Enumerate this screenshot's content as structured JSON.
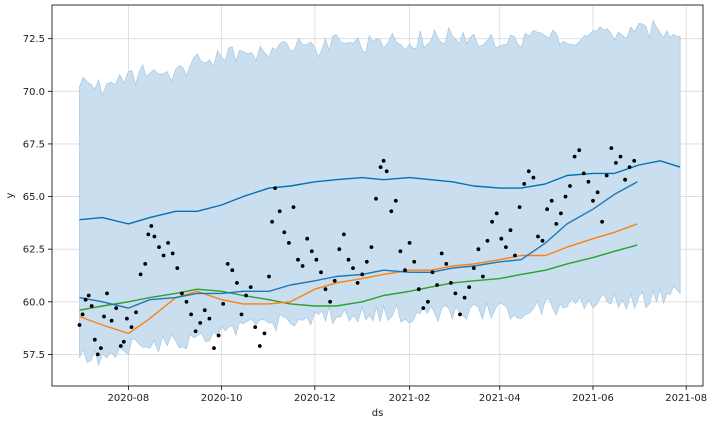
{
  "chart_data": {
    "type": "line",
    "title": "",
    "xlabel": "ds",
    "ylabel": "y",
    "xlim": [
      "2020-06-12",
      "2021-08-12"
    ],
    "ylim": [
      56.0,
      74.1
    ],
    "grid": true,
    "x_ticks": [
      "2020-08",
      "2020-10",
      "2020-12",
      "2021-02",
      "2021-04",
      "2021-06",
      "2021-08"
    ],
    "x_tick_dates": [
      "2020-08-01",
      "2020-10-01",
      "2020-12-01",
      "2021-02-01",
      "2021-04-01",
      "2021-06-01",
      "2021-08-01"
    ],
    "y_ticks": [
      57.5,
      60.0,
      62.5,
      65.0,
      67.5,
      70.0,
      72.5
    ],
    "colors": {
      "band_fill": "#c9dfef",
      "band_edge": "#a9cbe6",
      "forecast": "#0072B2",
      "series_2": "#1f77b4",
      "series_3": "#ff7f0e",
      "series_4": "#2ca02c",
      "points": "#000000",
      "grid": "#d9d9d9"
    },
    "forecast": {
      "x": [
        "2020-06-30",
        "2020-07-15",
        "2020-08-01",
        "2020-08-15",
        "2020-09-01",
        "2020-09-15",
        "2020-10-01",
        "2020-10-15",
        "2020-11-01",
        "2020-11-15",
        "2020-12-01",
        "2020-12-15",
        "2021-01-01",
        "2021-01-15",
        "2021-02-01",
        "2021-02-15",
        "2021-03-01",
        "2021-03-15",
        "2021-04-01",
        "2021-04-15",
        "2021-05-01",
        "2021-05-15",
        "2021-06-01",
        "2021-06-15",
        "2021-07-01",
        "2021-07-15",
        "2021-07-28"
      ],
      "yhat": [
        63.9,
        64.0,
        63.7,
        64.0,
        64.3,
        64.3,
        64.6,
        65.0,
        65.4,
        65.5,
        65.7,
        65.8,
        65.9,
        65.8,
        65.9,
        65.8,
        65.7,
        65.5,
        65.4,
        65.4,
        65.6,
        66.0,
        66.1,
        66.1,
        66.5,
        66.7,
        66.4
      ],
      "upper": [
        70.5,
        70.2,
        70.6,
        71.0,
        70.8,
        71.4,
        71.6,
        71.8,
        72.0,
        72.2,
        72.0,
        72.3,
        72.1,
        72.4,
        72.4,
        72.5,
        72.6,
        72.5,
        72.4,
        72.5,
        72.5,
        72.6,
        72.6,
        72.7,
        72.8,
        73.0,
        72.6
      ],
      "lower": [
        57.5,
        57.2,
        57.8,
        58.0,
        58.0,
        58.3,
        58.5,
        58.8,
        59.0,
        59.1,
        59.2,
        59.4,
        59.3,
        59.5,
        59.4,
        59.5,
        59.5,
        59.5,
        59.6,
        59.6,
        59.7,
        59.8,
        59.9,
        60.0,
        60.1,
        60.2,
        60.4
      ]
    },
    "series": [
      {
        "x": [
          "2020-06-30",
          "2020-07-15",
          "2020-08-01",
          "2020-08-15",
          "2020-09-01",
          "2020-09-15",
          "2020-10-01",
          "2020-10-15",
          "2020-11-01",
          "2020-11-15",
          "2020-12-01",
          "2020-12-15",
          "2021-01-01",
          "2021-01-15",
          "2021-02-01",
          "2021-02-15",
          "2021-03-01",
          "2021-03-15",
          "2021-04-01",
          "2021-04-15",
          "2021-05-01",
          "2021-05-15",
          "2021-06-01",
          "2021-06-15",
          "2021-06-30"
        ],
        "values": [
          60.2,
          60.0,
          59.7,
          60.1,
          60.2,
          60.4,
          60.4,
          60.5,
          60.5,
          60.8,
          61.0,
          61.2,
          61.3,
          61.5,
          61.4,
          61.4,
          61.6,
          61.7,
          61.9,
          62.0,
          62.8,
          63.7,
          64.4,
          65.1,
          65.7
        ]
      },
      {
        "x": [
          "2020-06-30",
          "2020-07-15",
          "2020-08-01",
          "2020-08-15",
          "2020-09-01",
          "2020-09-15",
          "2020-10-01",
          "2020-10-15",
          "2020-11-01",
          "2020-11-15",
          "2020-12-01",
          "2020-12-15",
          "2021-01-01",
          "2021-01-15",
          "2021-02-01",
          "2021-02-15",
          "2021-03-01",
          "2021-03-15",
          "2021-04-01",
          "2021-04-15",
          "2021-05-01",
          "2021-05-15",
          "2021-06-01",
          "2021-06-15",
          "2021-06-30"
        ],
        "values": [
          59.3,
          58.9,
          58.5,
          59.2,
          60.2,
          60.5,
          60.1,
          59.9,
          59.9,
          60.0,
          60.6,
          60.9,
          61.1,
          61.3,
          61.5,
          61.5,
          61.7,
          61.8,
          62.0,
          62.2,
          62.2,
          62.6,
          63.0,
          63.3,
          63.7
        ]
      },
      {
        "x": [
          "2020-06-30",
          "2020-07-15",
          "2020-08-01",
          "2020-08-15",
          "2020-09-01",
          "2020-09-15",
          "2020-10-01",
          "2020-10-15",
          "2020-11-01",
          "2020-11-15",
          "2020-12-01",
          "2020-12-15",
          "2021-01-01",
          "2021-01-15",
          "2021-02-01",
          "2021-02-15",
          "2021-03-01",
          "2021-03-15",
          "2021-04-01",
          "2021-04-15",
          "2021-05-01",
          "2021-05-15",
          "2021-06-01",
          "2021-06-15",
          "2021-06-30"
        ],
        "values": [
          59.6,
          59.8,
          60.0,
          60.2,
          60.4,
          60.6,
          60.5,
          60.3,
          60.1,
          59.9,
          59.8,
          59.8,
          60.0,
          60.3,
          60.5,
          60.7,
          60.9,
          61.0,
          61.1,
          61.3,
          61.5,
          61.8,
          62.1,
          62.4,
          62.7
        ]
      }
    ],
    "points": [
      [
        "2020-06-30",
        58.9
      ],
      [
        "2020-07-02",
        59.4
      ],
      [
        "2020-07-04",
        60.1
      ],
      [
        "2020-07-06",
        60.3
      ],
      [
        "2020-07-08",
        59.8
      ],
      [
        "2020-07-10",
        58.2
      ],
      [
        "2020-07-12",
        57.5
      ],
      [
        "2020-07-14",
        57.8
      ],
      [
        "2020-07-16",
        59.3
      ],
      [
        "2020-07-18",
        60.4
      ],
      [
        "2020-07-21",
        59.1
      ],
      [
        "2020-07-24",
        59.7
      ],
      [
        "2020-07-27",
        57.9
      ],
      [
        "2020-07-29",
        58.1
      ],
      [
        "2020-07-31",
        59.2
      ],
      [
        "2020-08-03",
        58.8
      ],
      [
        "2020-08-06",
        59.5
      ],
      [
        "2020-08-09",
        61.3
      ],
      [
        "2020-08-12",
        61.8
      ],
      [
        "2020-08-14",
        63.2
      ],
      [
        "2020-08-16",
        63.6
      ],
      [
        "2020-08-18",
        63.1
      ],
      [
        "2020-08-21",
        62.6
      ],
      [
        "2020-08-24",
        62.2
      ],
      [
        "2020-08-27",
        62.8
      ],
      [
        "2020-08-30",
        62.3
      ],
      [
        "2020-09-02",
        61.6
      ],
      [
        "2020-09-05",
        60.4
      ],
      [
        "2020-09-08",
        60.0
      ],
      [
        "2020-09-11",
        59.4
      ],
      [
        "2020-09-14",
        58.6
      ],
      [
        "2020-09-17",
        59.0
      ],
      [
        "2020-09-20",
        59.6
      ],
      [
        "2020-09-23",
        59.2
      ],
      [
        "2020-09-26",
        57.8
      ],
      [
        "2020-09-29",
        58.4
      ],
      [
        "2020-10-02",
        59.9
      ],
      [
        "2020-10-05",
        61.8
      ],
      [
        "2020-10-08",
        61.5
      ],
      [
        "2020-10-11",
        60.9
      ],
      [
        "2020-10-14",
        59.4
      ],
      [
        "2020-10-17",
        60.3
      ],
      [
        "2020-10-20",
        60.7
      ],
      [
        "2020-10-23",
        58.8
      ],
      [
        "2020-10-26",
        57.9
      ],
      [
        "2020-10-29",
        58.5
      ],
      [
        "2020-11-01",
        61.2
      ],
      [
        "2020-11-03",
        63.8
      ],
      [
        "2020-11-05",
        65.4
      ],
      [
        "2020-11-08",
        64.3
      ],
      [
        "2020-11-11",
        63.3
      ],
      [
        "2020-11-14",
        62.8
      ],
      [
        "2020-11-17",
        64.5
      ],
      [
        "2020-11-20",
        62.0
      ],
      [
        "2020-11-23",
        61.7
      ],
      [
        "2020-11-26",
        63.0
      ],
      [
        "2020-11-29",
        62.4
      ],
      [
        "2020-12-02",
        62.0
      ],
      [
        "2020-12-05",
        61.4
      ],
      [
        "2020-12-08",
        60.6
      ],
      [
        "2020-12-11",
        60.0
      ],
      [
        "2020-12-14",
        61.0
      ],
      [
        "2020-12-17",
        62.5
      ],
      [
        "2020-12-20",
        63.2
      ],
      [
        "2020-12-23",
        62.0
      ],
      [
        "2020-12-26",
        61.6
      ],
      [
        "2020-12-29",
        60.9
      ],
      [
        "2021-01-01",
        61.3
      ],
      [
        "2021-01-04",
        61.9
      ],
      [
        "2021-01-07",
        62.6
      ],
      [
        "2021-01-10",
        64.9
      ],
      [
        "2021-01-13",
        66.4
      ],
      [
        "2021-01-15",
        66.7
      ],
      [
        "2021-01-17",
        66.2
      ],
      [
        "2021-01-20",
        64.3
      ],
      [
        "2021-01-23",
        64.8
      ],
      [
        "2021-01-26",
        62.4
      ],
      [
        "2021-01-29",
        61.5
      ],
      [
        "2021-02-01",
        62.8
      ],
      [
        "2021-02-04",
        61.9
      ],
      [
        "2021-02-07",
        60.6
      ],
      [
        "2021-02-10",
        59.7
      ],
      [
        "2021-02-13",
        60.0
      ],
      [
        "2021-02-16",
        61.4
      ],
      [
        "2021-02-19",
        60.8
      ],
      [
        "2021-02-22",
        62.3
      ],
      [
        "2021-02-25",
        61.8
      ],
      [
        "2021-02-28",
        60.9
      ],
      [
        "2021-03-03",
        60.4
      ],
      [
        "2021-03-06",
        59.4
      ],
      [
        "2021-03-09",
        60.2
      ],
      [
        "2021-03-12",
        60.7
      ],
      [
        "2021-03-15",
        61.6
      ],
      [
        "2021-03-18",
        62.5
      ],
      [
        "2021-03-21",
        61.2
      ],
      [
        "2021-03-24",
        62.9
      ],
      [
        "2021-03-27",
        63.8
      ],
      [
        "2021-03-30",
        64.2
      ],
      [
        "2021-04-02",
        63.0
      ],
      [
        "2021-04-05",
        62.6
      ],
      [
        "2021-04-08",
        63.4
      ],
      [
        "2021-04-11",
        62.2
      ],
      [
        "2021-04-14",
        64.5
      ],
      [
        "2021-04-17",
        65.6
      ],
      [
        "2021-04-20",
        66.2
      ],
      [
        "2021-04-23",
        65.9
      ],
      [
        "2021-04-26",
        63.1
      ],
      [
        "2021-04-29",
        62.9
      ],
      [
        "2021-05-02",
        64.4
      ],
      [
        "2021-05-05",
        64.8
      ],
      [
        "2021-05-08",
        63.7
      ],
      [
        "2021-05-11",
        64.2
      ],
      [
        "2021-05-14",
        65.0
      ],
      [
        "2021-05-17",
        65.5
      ],
      [
        "2021-05-20",
        66.9
      ],
      [
        "2021-05-23",
        67.2
      ],
      [
        "2021-05-26",
        66.1
      ],
      [
        "2021-05-29",
        65.7
      ],
      [
        "2021-06-01",
        64.8
      ],
      [
        "2021-06-04",
        65.2
      ],
      [
        "2021-06-07",
        63.8
      ],
      [
        "2021-06-10",
        66.0
      ],
      [
        "2021-06-13",
        67.3
      ],
      [
        "2021-06-16",
        66.6
      ],
      [
        "2021-06-19",
        66.9
      ],
      [
        "2021-06-22",
        65.8
      ],
      [
        "2021-06-25",
        66.4
      ],
      [
        "2021-06-28",
        66.7
      ]
    ]
  }
}
